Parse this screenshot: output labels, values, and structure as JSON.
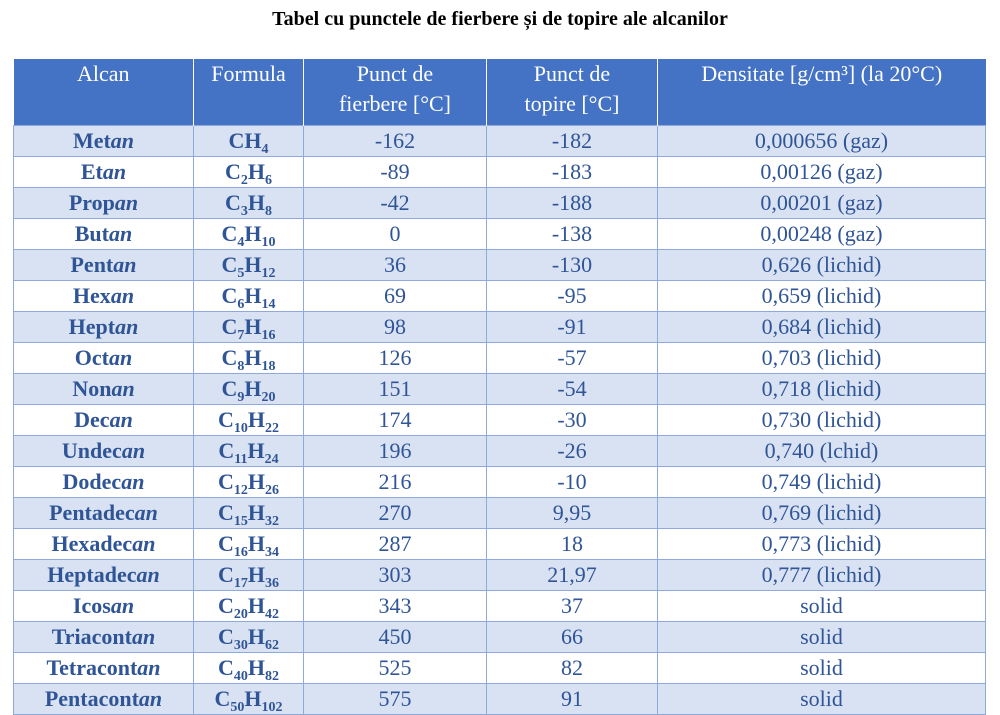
{
  "title": "Tabel cu punctele de fierbere și de topire ale alcanilor",
  "columns": {
    "alcan": "Alcan",
    "formula": "Formula",
    "fierbere_l1": "Punct de",
    "fierbere_l2": "fierbere [°C]",
    "topire_l1": "Punct de",
    "topire_l2": "topire [°C]",
    "densitate": "Densitate [g/cm³] (la 20°C)"
  },
  "rows": [
    {
      "prefix": "Met",
      "suffix": "an",
      "formula": [
        "C",
        "",
        "H",
        "4"
      ],
      "fierbere": "-162",
      "topire": "-182",
      "densitate": "0,000656 (gaz)"
    },
    {
      "prefix": "Et",
      "suffix": "an",
      "formula": [
        "C",
        "2",
        "H",
        "6"
      ],
      "fierbere": "-89",
      "topire": "-183",
      "densitate": "0,00126 (gaz)"
    },
    {
      "prefix": "Prop",
      "suffix": "an",
      "formula": [
        "C",
        "3",
        "H",
        "8"
      ],
      "fierbere": "-42",
      "topire": "-188",
      "densitate": "0,00201 (gaz)"
    },
    {
      "prefix": "But",
      "suffix": "an",
      "formula": [
        "C",
        "4",
        "H",
        "10"
      ],
      "fierbere": "0",
      "topire": "-138",
      "densitate": "0,00248 (gaz)"
    },
    {
      "prefix": "Pent",
      "suffix": "an",
      "formula": [
        "C",
        "5",
        "H",
        "12"
      ],
      "fierbere": "36",
      "topire": "-130",
      "densitate": "0,626 (lichid)"
    },
    {
      "prefix": "Hex",
      "suffix": "an",
      "formula": [
        "C",
        "6",
        "H",
        "14"
      ],
      "fierbere": "69",
      "topire": "-95",
      "densitate": "0,659 (lichid)"
    },
    {
      "prefix": "Hept",
      "suffix": "an",
      "formula": [
        "C",
        "7",
        "H",
        "16"
      ],
      "fierbere": "98",
      "topire": "-91",
      "densitate": "0,684 (lichid)"
    },
    {
      "prefix": "Oct",
      "suffix": "an",
      "formula": [
        "C",
        "8",
        "H",
        "18"
      ],
      "fierbere": "126",
      "topire": "-57",
      "densitate": "0,703 (lichid)"
    },
    {
      "prefix": "Non",
      "suffix": "an",
      "formula": [
        "C",
        "9",
        "H",
        "20"
      ],
      "fierbere": "151",
      "topire": "-54",
      "densitate": "0,718 (lichid)"
    },
    {
      "prefix": "Dec",
      "suffix": "an",
      "formula": [
        "C",
        "10",
        "H",
        "22"
      ],
      "fierbere": "174",
      "topire": "-30",
      "densitate": "0,730 (lichid)"
    },
    {
      "prefix": "Undec",
      "suffix": "an",
      "formula": [
        "C",
        "11",
        "H",
        "24"
      ],
      "fierbere": "196",
      "topire": "-26",
      "densitate": "0,740 (lchid)"
    },
    {
      "prefix": "Dodec",
      "suffix": "an",
      "formula": [
        "C",
        "12",
        "H",
        "26"
      ],
      "fierbere": "216",
      "topire": "-10",
      "densitate": "0,749 (lichid)"
    },
    {
      "prefix": "Pentadec",
      "suffix": "an",
      "formula": [
        "C",
        "15",
        "H",
        "32"
      ],
      "fierbere": "270",
      "topire": "9,95",
      "densitate": "0,769 (lichid)"
    },
    {
      "prefix": "Hexadec",
      "suffix": "an",
      "formula": [
        "C",
        "16",
        "H",
        "34"
      ],
      "fierbere": "287",
      "topire": "18",
      "densitate": "0,773 (lichid)"
    },
    {
      "prefix": "Heptadec",
      "suffix": "an",
      "formula": [
        "C",
        "17",
        "H",
        "36"
      ],
      "fierbere": "303",
      "topire": "21,97",
      "densitate": "0,777 (lichid)"
    },
    {
      "prefix": "Icos",
      "suffix": "an",
      "formula": [
        "C",
        "20",
        "H",
        "42"
      ],
      "fierbere": "343",
      "topire": "37",
      "densitate": "solid"
    },
    {
      "prefix": "Triacont",
      "suffix": "an",
      "formula": [
        "C",
        "30",
        "H",
        "62"
      ],
      "fierbere": "450",
      "topire": "66",
      "densitate": "solid"
    },
    {
      "prefix": "Tetracont",
      "suffix": "an",
      "formula": [
        "C",
        "40",
        "H",
        "82"
      ],
      "fierbere": "525",
      "topire": "82",
      "densitate": "solid"
    },
    {
      "prefix": "Pentacont",
      "suffix": "an",
      "formula": [
        "C",
        "50",
        "H",
        "102"
      ],
      "fierbere": "575",
      "topire": "91",
      "densitate": "solid"
    }
  ],
  "colors": {
    "header_bg": "#4472c4",
    "row_band": "#d9e2f3",
    "text": "#2f5597"
  }
}
